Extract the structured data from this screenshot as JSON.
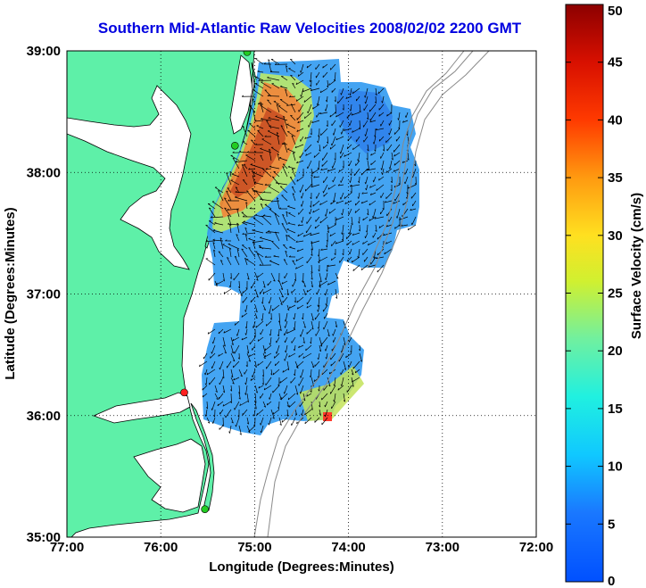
{
  "title": "Southern Mid-Atlantic Raw Velocities 2008/02/02 2200 GMT",
  "map": {
    "xlabel": "Longitude (Degrees:Minutes)",
    "ylabel": "Latitude (Degrees:Minutes)",
    "lon_range": [
      -77,
      -72
    ],
    "lat_range": [
      35,
      39
    ],
    "xticks": [
      "77:00",
      "76:00",
      "75:00",
      "74:00",
      "73:00",
      "72:00"
    ],
    "yticks": [
      "35:00",
      "36:00",
      "37:00",
      "38:00",
      "39:00"
    ],
    "grid": "dotted",
    "land_color": "#5ef0a8",
    "water_color": "#ffffff",
    "stations": [
      {
        "lon": -75.08,
        "lat": 38.99,
        "color": "#22cc22"
      },
      {
        "lon": -75.21,
        "lat": 38.22,
        "color": "#22cc22"
      },
      {
        "lon": -75.75,
        "lat": 36.19,
        "color": "#ff2020"
      },
      {
        "lon": -75.53,
        "lat": 35.23,
        "color": "#22cc22"
      }
    ]
  },
  "colorbar": {
    "label": "Surface Velocity (cm/s)",
    "min": 0,
    "max": 50,
    "ticks": [
      "0",
      "5",
      "10",
      "15",
      "20",
      "25",
      "30",
      "35",
      "40",
      "45",
      "50"
    ]
  }
}
